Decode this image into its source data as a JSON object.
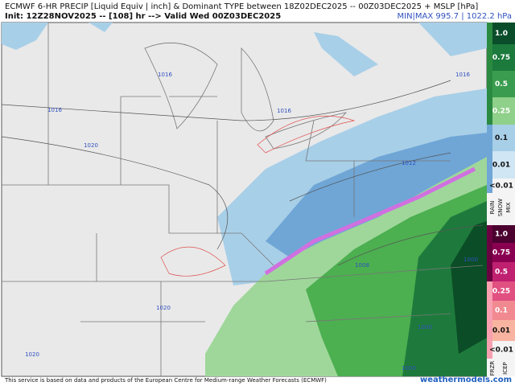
{
  "header": {
    "title": "ECMWF 6-HR PRECIP [Liquid Equiv | inch] & Dominant TYPE between 18Z02DEC2025 -- 00Z03DEC2025 + MSLP [hPa]",
    "init": "Init: 12Z28NOV2025 -- [108] hr --> Valid Wed 00Z03DEC2025",
    "minmax": "MIN|MAX 995.7 | 1022.2 hPa"
  },
  "isobar_labels": [
    "1016",
    "1016",
    "1016",
    "1020",
    "1016",
    "1012",
    "1020",
    "1020",
    "1008",
    "1000",
    "1000",
    "1000"
  ],
  "legend": {
    "rain_snow": {
      "labels": [
        "1.0",
        "0.75",
        "0.5",
        "0.25",
        "0.1",
        "0.01",
        "<0.01"
      ],
      "types": [
        "RAIN",
        "SNOW",
        "MIX"
      ]
    },
    "frzr_icep": {
      "labels": [
        "1.0",
        "0.75",
        "0.5",
        "0.25",
        "0.1",
        "0.01",
        "<0.01"
      ],
      "types": [
        "FRZR",
        "ICEP"
      ]
    }
  },
  "footer": {
    "credit": "This service is based on data and products of the European Centre for Medium-range Weather Forecasts (ECMWF)",
    "site": "weathermodels.com"
  }
}
